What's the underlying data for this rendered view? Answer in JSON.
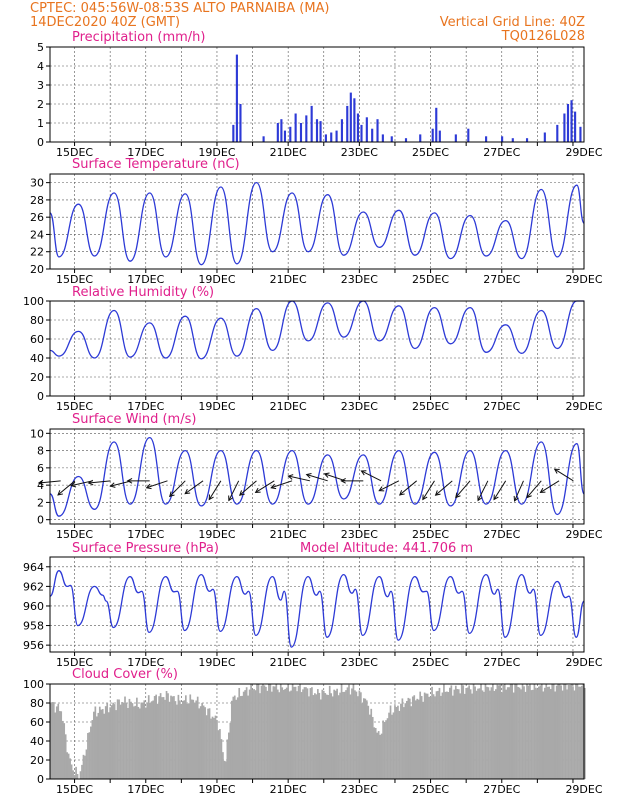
{
  "header": {
    "line1_left": "CPTEC:  045:56W-08:53S  ALTO PARNAIBA (MA)",
    "line2_left": "14DEC2020 40Z (GMT)",
    "line1_right": "Vertical Grid Line: 40Z",
    "line2_right": "TQ0126L028",
    "color": "#e8741f"
  },
  "colors": {
    "title": "#e0208c",
    "series": "#2d3ad6",
    "bar": "#2d3ad6",
    "cloud": "#a9a9a9",
    "arrow": "#111111"
  },
  "chart_data": [
    {
      "id": "precip",
      "type": "bar",
      "title": "Precipitation (mm/h)",
      "ylim": [
        0,
        5
      ],
      "yticks": [
        0,
        1,
        2,
        3,
        4,
        5
      ],
      "x_tick_labels": [
        "15DEC",
        "17DEC",
        "19DEC",
        "21DEC",
        "23DEC",
        "25DEC",
        "27DEC",
        "29DEC"
      ],
      "x_domain_days": 15,
      "values": [
        {
          "t": 5.15,
          "v": 0.9
        },
        {
          "t": 5.25,
          "v": 4.6
        },
        {
          "t": 5.35,
          "v": 2.0
        },
        {
          "t": 6.0,
          "v": 0.3
        },
        {
          "t": 6.4,
          "v": 1.0
        },
        {
          "t": 6.5,
          "v": 1.2
        },
        {
          "t": 6.6,
          "v": 0.6
        },
        {
          "t": 6.75,
          "v": 0.8
        },
        {
          "t": 6.9,
          "v": 1.5
        },
        {
          "t": 7.05,
          "v": 1.0
        },
        {
          "t": 7.2,
          "v": 1.4
        },
        {
          "t": 7.35,
          "v": 1.9
        },
        {
          "t": 7.5,
          "v": 1.2
        },
        {
          "t": 7.6,
          "v": 1.1
        },
        {
          "t": 7.75,
          "v": 0.4
        },
        {
          "t": 7.9,
          "v": 0.5
        },
        {
          "t": 8.05,
          "v": 0.6
        },
        {
          "t": 8.2,
          "v": 1.2
        },
        {
          "t": 8.35,
          "v": 1.9
        },
        {
          "t": 8.45,
          "v": 2.6
        },
        {
          "t": 8.55,
          "v": 2.3
        },
        {
          "t": 8.65,
          "v": 1.5
        },
        {
          "t": 8.75,
          "v": 0.9
        },
        {
          "t": 8.9,
          "v": 1.3
        },
        {
          "t": 9.05,
          "v": 0.7
        },
        {
          "t": 9.2,
          "v": 1.2
        },
        {
          "t": 9.35,
          "v": 0.4
        },
        {
          "t": 9.6,
          "v": 0.3
        },
        {
          "t": 10.0,
          "v": 0.2
        },
        {
          "t": 10.4,
          "v": 0.4
        },
        {
          "t": 10.75,
          "v": 0.7
        },
        {
          "t": 10.85,
          "v": 1.8
        },
        {
          "t": 10.95,
          "v": 0.6
        },
        {
          "t": 11.4,
          "v": 0.4
        },
        {
          "t": 11.75,
          "v": 0.7
        },
        {
          "t": 12.25,
          "v": 0.3
        },
        {
          "t": 12.7,
          "v": 0.3
        },
        {
          "t": 13.0,
          "v": 0.2
        },
        {
          "t": 13.4,
          "v": 0.2
        },
        {
          "t": 13.9,
          "v": 0.5
        },
        {
          "t": 14.25,
          "v": 0.9
        },
        {
          "t": 14.45,
          "v": 1.5
        },
        {
          "t": 14.55,
          "v": 2.0
        },
        {
          "t": 14.65,
          "v": 2.2
        },
        {
          "t": 14.75,
          "v": 1.6
        },
        {
          "t": 14.9,
          "v": 0.8
        }
      ]
    },
    {
      "id": "temp",
      "type": "line",
      "title": "Surface Temperature (nC)",
      "ylim": [
        20,
        31
      ],
      "yticks": [
        20,
        22,
        24,
        26,
        28,
        30
      ],
      "x_tick_labels": [
        "15DEC",
        "17DEC",
        "19DEC",
        "21DEC",
        "23DEC",
        "25DEC",
        "27DEC",
        "29DEC"
      ],
      "x_domain_days": 15,
      "daily_max": [
        27.5,
        28.8,
        28.8,
        28.7,
        29.5,
        30.0,
        28.8,
        28.6,
        26.6,
        26.8,
        26.5,
        26.2,
        25.6,
        29.2,
        29.7
      ],
      "daily_min": [
        21.4,
        21.5,
        20.9,
        21.4,
        20.5,
        20.6,
        22.0,
        22.0,
        21.6,
        22.5,
        21.6,
        21.2,
        21.5,
        21.2,
        21.4
      ],
      "start_value": 26.5,
      "end_value": 25.3
    },
    {
      "id": "rh",
      "type": "line",
      "title": "Relative Humidity (%)",
      "ylim": [
        0,
        100
      ],
      "yticks": [
        0,
        20,
        40,
        60,
        80,
        100
      ],
      "x_tick_labels": [
        "15DEC",
        "17DEC",
        "19DEC",
        "21DEC",
        "23DEC",
        "25DEC",
        "27DEC",
        "29DEC"
      ],
      "x_domain_days": 15,
      "daily_max": [
        68,
        90,
        77,
        84,
        82,
        92,
        100,
        98,
        100,
        95,
        93,
        93,
        75,
        90,
        100
      ],
      "daily_min": [
        42,
        40,
        41,
        40,
        39,
        42,
        48,
        58,
        62,
        58,
        50,
        55,
        46,
        45,
        50
      ],
      "start_value": 48,
      "end_value": 100
    },
    {
      "id": "wind",
      "type": "line",
      "title": "Surface Wind (m/s)",
      "ylim": [
        -0.5,
        10.5
      ],
      "yticks": [
        0,
        2,
        4,
        6,
        8,
        10
      ],
      "x_tick_labels": [
        "15DEC",
        "17DEC",
        "19DEC",
        "21DEC",
        "23DEC",
        "25DEC",
        "27DEC",
        "29DEC"
      ],
      "x_domain_days": 15,
      "daily_max": [
        5.0,
        9.0,
        9.5,
        8.0,
        8.0,
        8.0,
        8.0,
        7.5,
        7.5,
        8.0,
        7.8,
        8.0,
        8.0,
        9.0,
        8.8
      ],
      "daily_min": [
        0.4,
        1.2,
        1.8,
        1.8,
        1.6,
        1.8,
        1.8,
        1.8,
        2.4,
        1.8,
        1.8,
        1.6,
        1.8,
        1.8,
        0.6
      ],
      "start_value": 3.0,
      "end_value": 3.0,
      "wind_arrows": [
        {
          "t": 0.3,
          "u": -1.0,
          "v": -0.1
        },
        {
          "t": 0.7,
          "u": -0.6,
          "v": -0.5
        },
        {
          "t": 1.2,
          "u": -0.9,
          "v": -0.2
        },
        {
          "t": 1.7,
          "u": -1.0,
          "v": -0.1
        },
        {
          "t": 2.3,
          "u": -0.8,
          "v": -0.2
        },
        {
          "t": 2.8,
          "u": -1.0,
          "v": 0.0
        },
        {
          "t": 3.3,
          "u": -0.9,
          "v": -0.3
        },
        {
          "t": 3.8,
          "u": -0.6,
          "v": -0.6
        },
        {
          "t": 4.3,
          "u": -0.7,
          "v": -0.5
        },
        {
          "t": 4.8,
          "u": -0.5,
          "v": -0.8
        },
        {
          "t": 5.3,
          "u": -0.4,
          "v": -0.8
        },
        {
          "t": 5.8,
          "u": -0.7,
          "v": -0.6
        },
        {
          "t": 6.3,
          "u": -0.8,
          "v": -0.5
        },
        {
          "t": 6.8,
          "u": -0.9,
          "v": -0.3
        },
        {
          "t": 7.3,
          "u": -0.9,
          "v": 0.2
        },
        {
          "t": 7.8,
          "u": -1.0,
          "v": 0.3
        },
        {
          "t": 8.3,
          "u": -0.9,
          "v": 0.3
        },
        {
          "t": 8.8,
          "u": -1.0,
          "v": 0.0
        },
        {
          "t": 9.3,
          "u": -0.8,
          "v": 0.4
        },
        {
          "t": 9.8,
          "u": -0.8,
          "v": -0.4
        },
        {
          "t": 10.3,
          "u": -0.6,
          "v": -0.5
        },
        {
          "t": 10.8,
          "u": -0.5,
          "v": -0.8
        },
        {
          "t": 11.3,
          "u": -0.7,
          "v": -0.6
        },
        {
          "t": 11.8,
          "u": -0.6,
          "v": -0.7
        },
        {
          "t": 12.3,
          "u": -0.4,
          "v": -0.8
        },
        {
          "t": 12.8,
          "u": -0.5,
          "v": -0.8
        },
        {
          "t": 13.3,
          "u": -0.4,
          "v": -0.9
        },
        {
          "t": 13.8,
          "u": -0.6,
          "v": -0.7
        },
        {
          "t": 14.3,
          "u": -0.8,
          "v": -0.5
        },
        {
          "t": 14.7,
          "u": -0.8,
          "v": 0.5
        }
      ]
    },
    {
      "id": "pres",
      "type": "line",
      "title": "Surface Pressure (hPa)",
      "annotation": "Model Altitude: 441.706 m",
      "ylim": [
        955.3,
        965.0
      ],
      "yticks": [
        956,
        958,
        960,
        962,
        964
      ],
      "x_tick_labels": [
        "15DEC",
        "17DEC",
        "19DEC",
        "21DEC",
        "23DEC",
        "25DEC",
        "27DEC",
        "29DEC"
      ],
      "x_domain_days": 15,
      "daily_max": [
        963.6,
        962.0,
        963.0,
        963.0,
        963.2,
        963.0,
        963.0,
        963.0,
        963.2,
        963.0,
        963.0,
        963.0,
        963.2,
        963.2,
        962.5
      ],
      "daily_min": [
        958.0,
        957.8,
        957.3,
        957.5,
        957.4,
        957.0,
        955.8,
        956.8,
        957.0,
        956.5,
        957.5,
        957.2,
        956.8,
        957.0,
        956.8
      ],
      "start_value": 961.0,
      "end_value": 960.5
    },
    {
      "id": "cloud",
      "type": "bar",
      "title": "Cloud Cover (%)",
      "ylim": [
        0,
        100
      ],
      "yticks": [
        0,
        20,
        40,
        60,
        80,
        100
      ],
      "x_tick_labels": [
        "15DEC",
        "17DEC",
        "19DEC",
        "21DEC",
        "23DEC",
        "25DEC",
        "27DEC",
        "29DEC"
      ],
      "x_domain_days": 15,
      "profile": [
        {
          "t": 0.0,
          "v": 80
        },
        {
          "t": 0.3,
          "v": 72
        },
        {
          "t": 0.5,
          "v": 25
        },
        {
          "t": 0.6,
          "v": 12
        },
        {
          "t": 0.8,
          "v": 2
        },
        {
          "t": 1.0,
          "v": 35
        },
        {
          "t": 1.2,
          "v": 70
        },
        {
          "t": 1.6,
          "v": 75
        },
        {
          "t": 2.0,
          "v": 82
        },
        {
          "t": 2.5,
          "v": 78
        },
        {
          "t": 3.0,
          "v": 86
        },
        {
          "t": 3.3,
          "v": 88
        },
        {
          "t": 3.6,
          "v": 82
        },
        {
          "t": 4.0,
          "v": 84
        },
        {
          "t": 4.3,
          "v": 76
        },
        {
          "t": 4.7,
          "v": 60
        },
        {
          "t": 4.9,
          "v": 15
        },
        {
          "t": 5.1,
          "v": 85
        },
        {
          "t": 5.6,
          "v": 95
        },
        {
          "t": 6.0,
          "v": 98
        },
        {
          "t": 6.5,
          "v": 96
        },
        {
          "t": 7.0,
          "v": 97
        },
        {
          "t": 7.5,
          "v": 90
        },
        {
          "t": 8.0,
          "v": 92
        },
        {
          "t": 8.5,
          "v": 96
        },
        {
          "t": 8.9,
          "v": 80
        },
        {
          "t": 9.2,
          "v": 45
        },
        {
          "t": 9.5,
          "v": 70
        },
        {
          "t": 10.0,
          "v": 82
        },
        {
          "t": 10.5,
          "v": 88
        },
        {
          "t": 11.0,
          "v": 93
        },
        {
          "t": 11.5,
          "v": 95
        },
        {
          "t": 12.0,
          "v": 96
        },
        {
          "t": 12.5,
          "v": 97
        },
        {
          "t": 13.0,
          "v": 98
        },
        {
          "t": 13.5,
          "v": 97
        },
        {
          "t": 14.0,
          "v": 98
        },
        {
          "t": 14.5,
          "v": 99
        },
        {
          "t": 15.0,
          "v": 99
        }
      ]
    }
  ]
}
